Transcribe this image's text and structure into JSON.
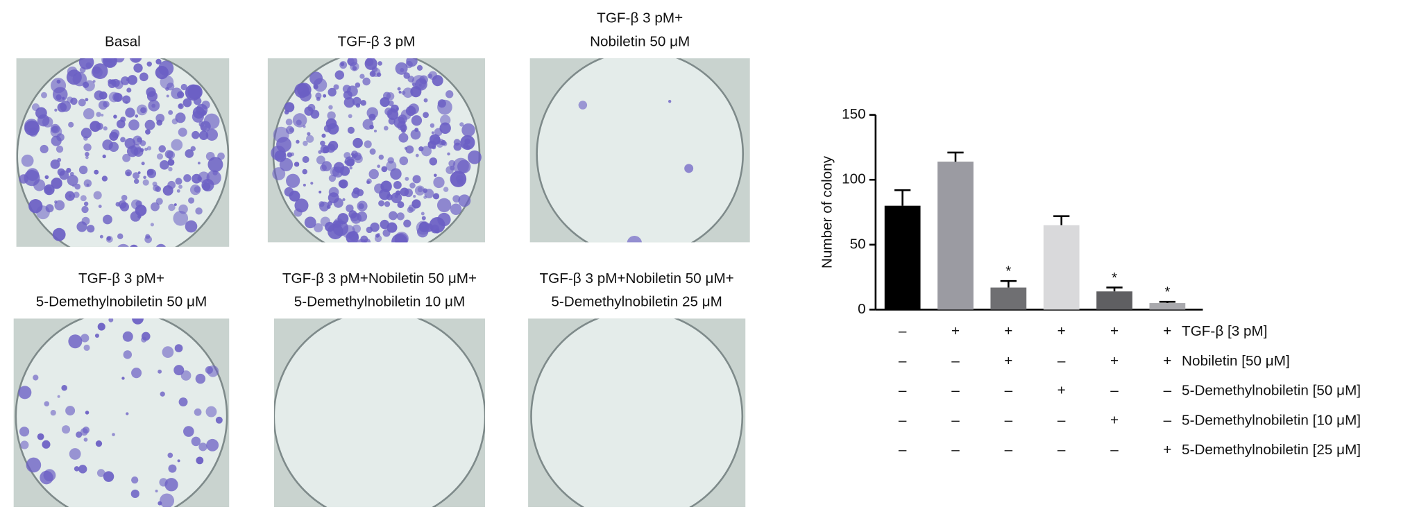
{
  "panels": [
    {
      "label": [
        "Basal"
      ]
    },
    {
      "label": [
        "TGF-β 3 pM"
      ]
    },
    {
      "label": [
        "TGF-β 3 pM+",
        "Nobiletin 50 μM"
      ]
    },
    {
      "label": [
        "TGF-β 3 pM+",
        "5-Demethylnobiletin 50 μM"
      ]
    },
    {
      "label": [
        "TGF-β 3 pM+Nobiletin 50 μM+",
        "5-Demethylnobiletin 10 μM"
      ]
    },
    {
      "label": [
        "TGF-β 3 pM+Nobiletin 50 μM+",
        "5-Demethylnobiletin 25 μM"
      ]
    }
  ],
  "chart_data": {
    "type": "bar",
    "ylabel": "Number of colony",
    "categories": [
      null,
      null,
      null,
      null,
      null,
      null
    ],
    "values": [
      80,
      114,
      17,
      65,
      14,
      5
    ],
    "errors": [
      12,
      7,
      5,
      7,
      3,
      1
    ],
    "colors": [
      "#000000",
      "#9b9ba2",
      "#6f6f72",
      "#d9d9db",
      "#5f5f62",
      "#a9a9ad"
    ],
    "significance": [
      null,
      null,
      "*",
      null,
      "*",
      "*"
    ],
    "ylim": [
      0,
      150
    ],
    "yticks": [
      0,
      50,
      100,
      150
    ],
    "conditions": [
      {
        "name": "TGF-β [3 pM]",
        "signs": [
          "–",
          "+",
          "+",
          "+",
          "+",
          "+"
        ]
      },
      {
        "name": "Nobiletin [50 μM]",
        "signs": [
          "–",
          "–",
          "+",
          "–",
          "+",
          "+"
        ]
      },
      {
        "name": "5-Demethylnobiletin [50 μM]",
        "signs": [
          "–",
          "–",
          "–",
          "+",
          "–",
          "–"
        ]
      },
      {
        "name": "5-Demethylnobiletin [10 μM]",
        "signs": [
          "–",
          "–",
          "–",
          "–",
          "+",
          "–"
        ]
      },
      {
        "name": "5-Demethylnobiletin [25 μM]",
        "signs": [
          "–",
          "–",
          "–",
          "–",
          "–",
          "+"
        ]
      }
    ]
  }
}
